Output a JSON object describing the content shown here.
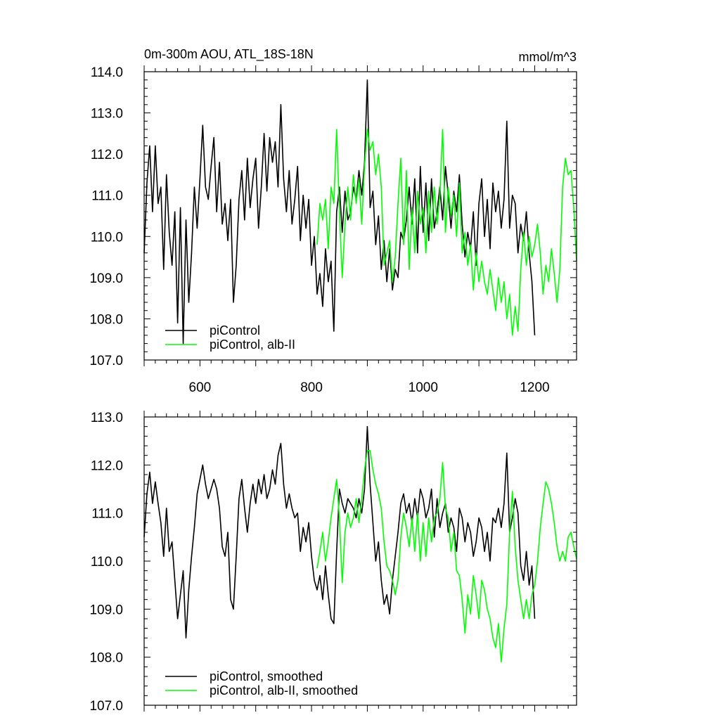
{
  "figure": {
    "title_left": "0m-300m AOU, ATL_18S-18N",
    "title_right": "mmol/m^3"
  },
  "chart_data": [
    {
      "type": "line",
      "title": "0m-300m AOU, ATL_18S-18N",
      "unit": "mmol/m^3",
      "xlim": [
        500,
        1275
      ],
      "ylim": [
        107.0,
        114.0
      ],
      "xticks": [
        600,
        800,
        1000,
        1200
      ],
      "yticks": [
        107.0,
        108.0,
        109.0,
        110.0,
        111.0,
        112.0,
        113.0,
        114.0
      ],
      "ytick_labels": [
        "107.0",
        "108.0",
        "109.0",
        "110.0",
        "111.0",
        "112.0",
        "113.0",
        "114.0"
      ],
      "grid": false,
      "legend_position": "bottom-left",
      "series": [
        {
          "name": "piControl",
          "color": "#000000",
          "x": [
            500,
            505,
            510,
            515,
            520,
            525,
            530,
            535,
            540,
            545,
            550,
            555,
            560,
            565,
            570,
            575,
            580,
            585,
            590,
            595,
            600,
            605,
            610,
            615,
            620,
            625,
            630,
            635,
            640,
            645,
            650,
            655,
            660,
            665,
            670,
            675,
            680,
            685,
            690,
            695,
            700,
            705,
            710,
            715,
            720,
            725,
            730,
            735,
            740,
            745,
            750,
            755,
            760,
            765,
            770,
            775,
            780,
            785,
            790,
            795,
            800,
            805,
            810,
            815,
            820,
            825,
            830,
            835,
            840,
            845,
            850,
            855,
            860,
            865,
            870,
            875,
            880,
            885,
            890,
            895,
            900,
            905,
            910,
            915,
            920,
            925,
            930,
            935,
            940,
            945,
            950,
            955,
            960,
            965,
            970,
            975,
            980,
            985,
            990,
            995,
            1000,
            1005,
            1010,
            1015,
            1020,
            1025,
            1030,
            1035,
            1040,
            1045,
            1050,
            1055,
            1060,
            1065,
            1070,
            1075,
            1080,
            1085,
            1090,
            1095,
            1100,
            1105,
            1110,
            1115,
            1120,
            1125,
            1130,
            1135,
            1140,
            1145,
            1150,
            1155,
            1160,
            1165,
            1170,
            1175,
            1180,
            1185,
            1190,
            1195,
            1200
          ],
          "values": [
            109.6,
            111.3,
            112.2,
            110.6,
            112.2,
            110.8,
            111.2,
            109.2,
            111.5,
            110.1,
            109.3,
            110.6,
            107.9,
            110.7,
            107.4,
            110.4,
            108.4,
            109.6,
            111.2,
            110.2,
            111.4,
            112.7,
            111.2,
            110.9,
            111.7,
            112.4,
            110.6,
            111.8,
            110.3,
            110.8,
            109.9,
            110.9,
            108.4,
            109.3,
            110.9,
            111.6,
            110.4,
            111.9,
            110.7,
            111.4,
            111.9,
            110.2,
            111.2,
            112.5,
            111.1,
            112.4,
            111.8,
            112.3,
            111.2,
            113.2,
            111.4,
            110.6,
            111.6,
            110.3,
            110.9,
            111.7,
            109.9,
            111.0,
            110.2,
            110.9,
            109.3,
            110.0,
            108.6,
            109.1,
            108.3,
            109.7,
            108.9,
            109.4,
            107.7,
            110.6,
            111.2,
            110.1,
            111.1,
            110.4,
            110.6,
            111.2,
            110.9,
            111.6,
            111.0,
            111.8,
            113.8,
            110.7,
            111.1,
            109.8,
            110.5,
            109.2,
            109.9,
            108.9,
            109.7,
            108.7,
            109.2,
            109.0,
            110.1,
            109.9,
            110.4,
            111.2,
            110.3,
            111.4,
            109.6,
            111.7,
            110.1,
            111.3,
            109.9,
            111.4,
            110.2,
            110.6,
            111.2,
            110.4,
            111.7,
            111.0,
            110.2,
            111.1,
            110.6,
            111.5,
            110.3,
            109.5,
            110.1,
            109.7,
            110.6,
            109.3,
            110.8,
            111.4,
            110.0,
            110.9,
            109.7,
            111.3,
            110.6,
            111.1,
            110.2,
            110.9,
            112.8,
            110.2,
            111.0,
            110.8,
            109.6,
            110.3,
            109.9,
            110.6,
            109.6,
            108.9,
            107.6
          ]
        },
        {
          "name": "piControl, alb-II",
          "color": "#00ff00",
          "x": [
            810,
            815,
            820,
            825,
            830,
            835,
            840,
            845,
            850,
            855,
            860,
            865,
            870,
            875,
            880,
            885,
            890,
            895,
            900,
            905,
            910,
            915,
            920,
            925,
            930,
            935,
            940,
            945,
            950,
            955,
            960,
            965,
            970,
            975,
            980,
            985,
            990,
            995,
            1000,
            1005,
            1010,
            1015,
            1020,
            1025,
            1030,
            1035,
            1040,
            1045,
            1050,
            1055,
            1060,
            1065,
            1070,
            1075,
            1080,
            1085,
            1090,
            1095,
            1100,
            1105,
            1110,
            1115,
            1120,
            1125,
            1130,
            1135,
            1140,
            1145,
            1150,
            1155,
            1160,
            1165,
            1170,
            1175,
            1180,
            1185,
            1190,
            1195,
            1200,
            1205,
            1210,
            1215,
            1220,
            1225,
            1230,
            1235,
            1240,
            1245,
            1250,
            1255,
            1260,
            1265,
            1270,
            1275
          ],
          "values": [
            109.8,
            110.8,
            110.4,
            110.9,
            109.7,
            111.2,
            110.8,
            112.6,
            110.6,
            109.0,
            110.3,
            111.2,
            110.4,
            111.5,
            110.8,
            111.4,
            110.3,
            111.7,
            112.6,
            112.1,
            112.3,
            111.5,
            112.0,
            111.2,
            109.3,
            109.6,
            109.9,
            108.9,
            109.5,
            110.8,
            111.9,
            109.8,
            111.6,
            109.2,
            110.7,
            109.6,
            111.1,
            110.3,
            110.7,
            109.6,
            111.1,
            110.1,
            111.2,
            110.3,
            111.0,
            112.6,
            110.1,
            111.2,
            110.5,
            111.0,
            110.0,
            111.3,
            109.6,
            110.1,
            109.3,
            109.8,
            108.7,
            109.6,
            108.9,
            109.4,
            108.9,
            108.6,
            109.2,
            108.7,
            108.2,
            109.0,
            108.4,
            108.9,
            108.0,
            108.6,
            107.6,
            108.3,
            107.7,
            109.2,
            110.1,
            109.3,
            110.0,
            109.5,
            109.8,
            110.3,
            109.6,
            108.6,
            109.3,
            108.9,
            109.7,
            109.1,
            108.4,
            109.2,
            111.2,
            111.9,
            111.5,
            111.6,
            110.7,
            109.4
          ]
        }
      ]
    },
    {
      "type": "line",
      "xlim": [
        500,
        1275
      ],
      "ylim": [
        107.0,
        113.0
      ],
      "xticks": [
        600,
        800,
        1000,
        1200
      ],
      "yticks": [
        107.0,
        108.0,
        109.0,
        110.0,
        111.0,
        112.0,
        113.0
      ],
      "ytick_labels": [
        "107.0",
        "108.0",
        "109.0",
        "110.0",
        "111.0",
        "112.0",
        "113.0"
      ],
      "grid": false,
      "legend_position": "bottom-left",
      "series": [
        {
          "name": "piControl, smoothed",
          "color": "#000000",
          "x": [
            500,
            505,
            510,
            515,
            520,
            525,
            530,
            535,
            540,
            545,
            550,
            555,
            560,
            565,
            570,
            575,
            580,
            585,
            590,
            595,
            600,
            605,
            610,
            615,
            620,
            625,
            630,
            635,
            640,
            645,
            650,
            655,
            660,
            665,
            670,
            675,
            680,
            685,
            690,
            695,
            700,
            705,
            710,
            715,
            720,
            725,
            730,
            735,
            740,
            745,
            750,
            755,
            760,
            765,
            770,
            775,
            780,
            785,
            790,
            795,
            800,
            805,
            810,
            815,
            820,
            825,
            830,
            835,
            840,
            845,
            850,
            855,
            860,
            865,
            870,
            875,
            880,
            885,
            890,
            895,
            900,
            905,
            910,
            915,
            920,
            925,
            930,
            935,
            940,
            945,
            950,
            955,
            960,
            965,
            970,
            975,
            980,
            985,
            990,
            995,
            1000,
            1005,
            1010,
            1015,
            1020,
            1025,
            1030,
            1035,
            1040,
            1045,
            1050,
            1055,
            1060,
            1065,
            1070,
            1075,
            1080,
            1085,
            1090,
            1095,
            1100,
            1105,
            1110,
            1115,
            1120,
            1125,
            1130,
            1135,
            1140,
            1145,
            1150,
            1155,
            1160,
            1165,
            1170,
            1175,
            1180,
            1185,
            1190,
            1195,
            1200
          ],
          "values": [
            110.5,
            111.4,
            111.85,
            111.2,
            111.65,
            111.2,
            110.8,
            110.1,
            111.1,
            110.2,
            110.4,
            109.6,
            108.8,
            109.3,
            109.8,
            108.4,
            109.4,
            110.1,
            110.7,
            111.4,
            111.7,
            112.0,
            111.6,
            111.3,
            111.5,
            111.7,
            111.5,
            111.1,
            110.3,
            110.1,
            110.6,
            109.2,
            109.0,
            110.1,
            111.3,
            111.7,
            111.1,
            110.6,
            111.2,
            111.6,
            111.2,
            111.7,
            111.4,
            111.8,
            111.3,
            111.5,
            111.9,
            111.6,
            112.2,
            112.45,
            111.6,
            111.1,
            111.4,
            111.1,
            110.9,
            111.0,
            110.2,
            110.7,
            110.4,
            110.8,
            110.1,
            109.6,
            109.4,
            109.7,
            109.2,
            109.9,
            109.3,
            108.8,
            108.7,
            110.2,
            111.5,
            111.2,
            111.0,
            111.3,
            111.2,
            111.1,
            110.9,
            111.3,
            111.0,
            111.5,
            112.8,
            111.6,
            110.8,
            110.0,
            110.4,
            109.6,
            109.1,
            109.3,
            108.9,
            109.6,
            110.1,
            110.6,
            111.2,
            111.4,
            111.0,
            111.2,
            110.8,
            111.3,
            110.9,
            111.5,
            111.3,
            110.9,
            111.1,
            111.5,
            110.5,
            111.3,
            110.7,
            111.0,
            111.2,
            110.6,
            110.9,
            110.7,
            110.2,
            111.1,
            110.9,
            110.4,
            110.8,
            110.6,
            110.1,
            110.4,
            110.9,
            110.7,
            110.2,
            110.6,
            110.0,
            110.9,
            110.8,
            111.1,
            110.7,
            111.2,
            112.25,
            110.6,
            110.9,
            111.3,
            111.0,
            109.9,
            109.6,
            110.2,
            109.5,
            109.9,
            108.8
          ]
        },
        {
          "name": "piControl, alb-II, smoothed",
          "color": "#00ff00",
          "x": [
            810,
            815,
            820,
            825,
            830,
            835,
            840,
            845,
            850,
            855,
            860,
            865,
            870,
            875,
            880,
            885,
            890,
            895,
            900,
            905,
            910,
            915,
            920,
            925,
            930,
            935,
            940,
            945,
            950,
            955,
            960,
            965,
            970,
            975,
            980,
            985,
            990,
            995,
            1000,
            1005,
            1010,
            1015,
            1020,
            1025,
            1030,
            1035,
            1040,
            1045,
            1050,
            1055,
            1060,
            1065,
            1070,
            1075,
            1080,
            1085,
            1090,
            1095,
            1100,
            1105,
            1110,
            1115,
            1120,
            1125,
            1130,
            1135,
            1140,
            1145,
            1150,
            1155,
            1160,
            1165,
            1170,
            1175,
            1180,
            1185,
            1190,
            1195,
            1200,
            1205,
            1210,
            1215,
            1220,
            1225,
            1230,
            1235,
            1240,
            1245,
            1250,
            1255,
            1260,
            1265,
            1270,
            1275
          ],
          "values": [
            109.85,
            110.2,
            110.6,
            110.0,
            110.4,
            110.9,
            111.3,
            111.7,
            110.9,
            109.55,
            110.6,
            111.0,
            110.7,
            110.9,
            111.3,
            110.8,
            111.3,
            111.9,
            112.3,
            112.3,
            111.9,
            111.6,
            111.4,
            111.1,
            110.4,
            109.9,
            109.8,
            109.6,
            109.3,
            109.6,
            110.5,
            111.0,
            110.7,
            110.3,
            110.9,
            110.2,
            111.0,
            110.0,
            110.8,
            110.1,
            110.9,
            110.4,
            110.9,
            111.0,
            111.3,
            112.05,
            111.1,
            110.9,
            110.2,
            110.6,
            109.8,
            109.7,
            109.2,
            108.5,
            109.3,
            108.9,
            109.7,
            109.3,
            108.8,
            109.6,
            109.4,
            109.0,
            108.8,
            108.4,
            108.2,
            108.7,
            107.9,
            108.6,
            109.1,
            110.6,
            111.45,
            110.3,
            109.6,
            109.2,
            108.8,
            109.2,
            108.8,
            109.3,
            109.5,
            110.0,
            110.7,
            111.2,
            111.65,
            111.5,
            111.2,
            110.8,
            110.3,
            110.0,
            110.2,
            110.0,
            110.5,
            110.6,
            110.3,
            110.05
          ]
        }
      ]
    }
  ]
}
